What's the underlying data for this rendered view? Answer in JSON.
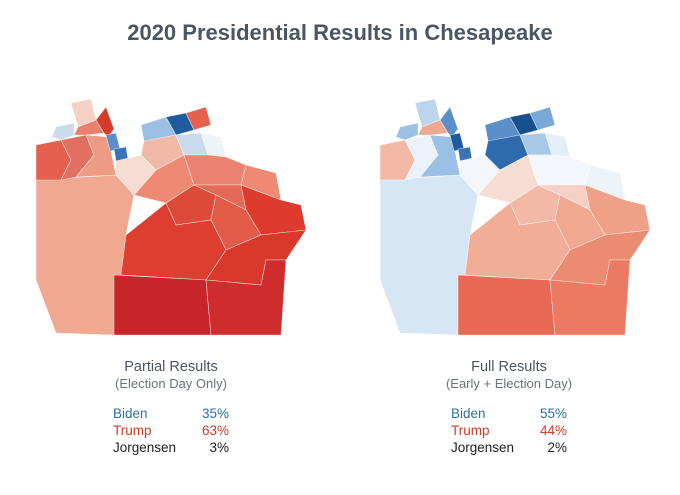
{
  "title": "2020 Presidential Results in Chesapeake",
  "colors": {
    "biden": "#2f6fa8",
    "trump": "#d33a2c",
    "jorgensen": "#222222"
  },
  "panels": [
    {
      "title": "Partial Results",
      "subtitle": "(Election Day Only)",
      "results": [
        {
          "name": "Biden",
          "pct": "35%"
        },
        {
          "name": "Trump",
          "pct": "63%"
        },
        {
          "name": "Jorgensen",
          "pct": "3%"
        }
      ]
    },
    {
      "title": "Full Results",
      "subtitle": "(Early + Election Day)",
      "results": [
        {
          "name": "Biden",
          "pct": "55%"
        },
        {
          "name": "Trump",
          "pct": "44%"
        },
        {
          "name": "Jorgensen",
          "pct": "2%"
        }
      ]
    }
  ]
}
